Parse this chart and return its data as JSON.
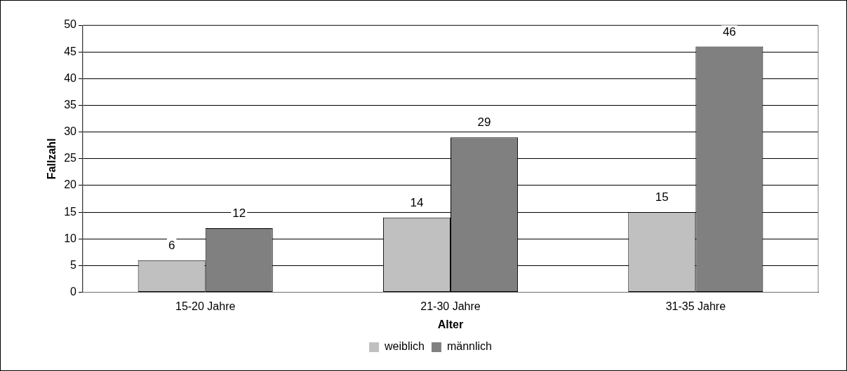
{
  "chart_data": {
    "type": "bar",
    "xlabel": "Alter",
    "ylabel": "Fallzahl",
    "categories": [
      "15-20 Jahre",
      "21-30 Jahre",
      "31-35 Jahre"
    ],
    "series": [
      {
        "name": "weiblich",
        "color": "#c0c0c0",
        "values": [
          6,
          14,
          15
        ]
      },
      {
        "name": "männlich",
        "color": "#808080",
        "values": [
          12,
          29,
          46
        ]
      }
    ],
    "ylim": [
      0,
      50
    ],
    "yticks": [
      0,
      5,
      10,
      15,
      20,
      25,
      30,
      35,
      40,
      45,
      50
    ],
    "grid": "y",
    "legend": "bottom",
    "data_labels": true
  }
}
